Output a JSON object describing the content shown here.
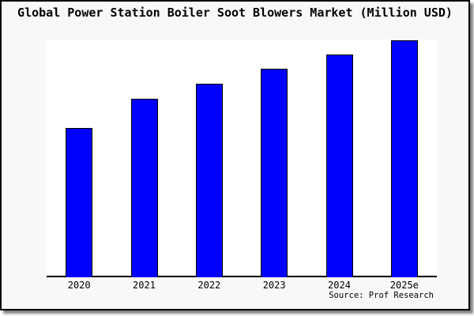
{
  "title": "Global Power Station Boiler Soot Blowers Market (Million USD)",
  "source_note": "Source: Prof Research",
  "chart_data": {
    "type": "bar",
    "title": "Global Power Station Boiler Soot Blowers Market (Million USD)",
    "categories": [
      "2020",
      "2021",
      "2022",
      "2023",
      "2024",
      "2025e"
    ],
    "values": [
      63,
      75.3,
      81.7,
      88,
      94,
      100
    ],
    "values_note": "No y-axis or data labels shown in source image; values estimated from bar heights as percent of tallest bar (2025e = 100)",
    "xlabel": "",
    "ylabel": "",
    "ylim": [
      0,
      100
    ],
    "grid": false,
    "legend": "none",
    "annotations": [
      "Source: Prof Research"
    ]
  },
  "colors": {
    "bar_fill": "#0000ff",
    "bar_border": "#000000",
    "plot_bg": "#ffffff",
    "figure_bg": "#f8f8f8",
    "axis_line": "#000000",
    "frame_border": "#000000",
    "text": "#000000"
  }
}
